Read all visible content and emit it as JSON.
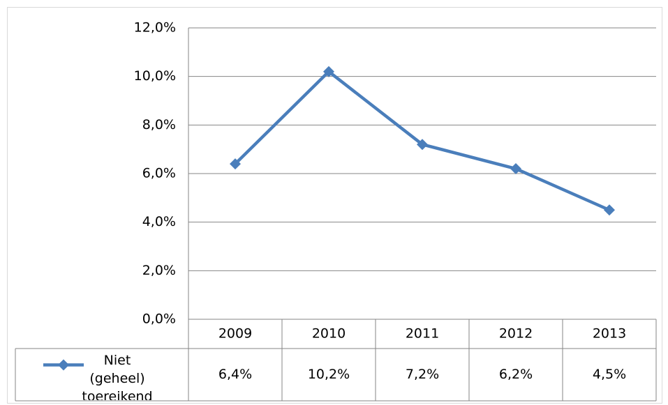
{
  "chart_data": {
    "type": "line",
    "categories": [
      "2009",
      "2010",
      "2011",
      "2012",
      "2013"
    ],
    "series": [
      {
        "name": "Niet (geheel) toereikend",
        "color": "#4a7ebb",
        "values": [
          6.4,
          10.2,
          7.2,
          6.2,
          4.5
        ],
        "value_labels": [
          "6,4%",
          "10,2%",
          "7,2%",
          "6,2%",
          "4,5%"
        ]
      }
    ],
    "ylim": [
      0,
      12
    ],
    "yticks": [
      {
        "value": 0,
        "label": "0,0%"
      },
      {
        "value": 2,
        "label": "2,0%"
      },
      {
        "value": 4,
        "label": "4,0%"
      },
      {
        "value": 6,
        "label": "6,0%"
      },
      {
        "value": 8,
        "label": "8,0%"
      },
      {
        "value": 10,
        "label": "10,0%"
      },
      {
        "value": 12,
        "label": "12,0%"
      }
    ],
    "grid": true
  }
}
